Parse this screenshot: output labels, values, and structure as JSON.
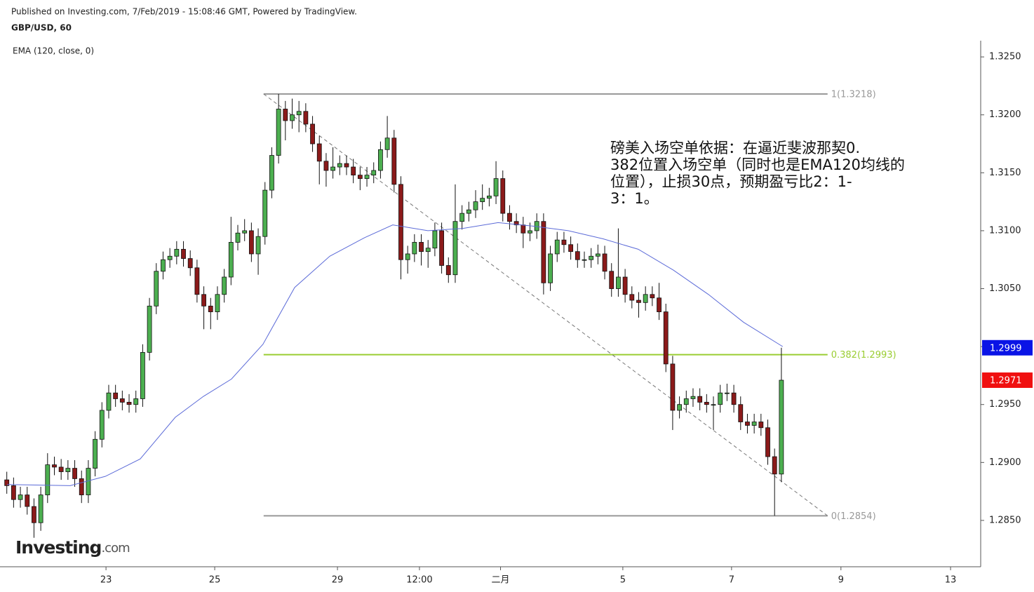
{
  "header": {
    "published": "Published on Investing.com, 7/Feb/2019 - 15:08:46 GMT, Powered by TradingView.",
    "symbol": "GBP/USD, 60"
  },
  "logo": {
    "main": "Investing",
    "suffix": ".com"
  },
  "chart_data": {
    "type": "candlestick",
    "annotation": [
      "磅美入场空单依据：在逼近斐波那契0.",
      "382位置入场空单（同时也是EMA120均线的",
      "位置），止损30点，预期盈亏比2：1-",
      "3：1。"
    ],
    "up_color": "#4caf50",
    "down_color": "#8b1a1a",
    "x": [
      3,
      6,
      9,
      12,
      15,
      18,
      21,
      24,
      27,
      30,
      33,
      36,
      39,
      42,
      45,
      48,
      51,
      54,
      57,
      60,
      63,
      66,
      69,
      72,
      75,
      78,
      81,
      84,
      87,
      90,
      93,
      96,
      99,
      102,
      105,
      108,
      111,
      114,
      117,
      120,
      123,
      126,
      129,
      132,
      135,
      138,
      141,
      144,
      147,
      150,
      153,
      156,
      159,
      162,
      165,
      168,
      171,
      174,
      177,
      180,
      183,
      186,
      189,
      192,
      195,
      198,
      201,
      204,
      207,
      210,
      213,
      216,
      219,
      222,
      225,
      228,
      231,
      234,
      237,
      240,
      243,
      246,
      249,
      252,
      255,
      258,
      261,
      264,
      267,
      270,
      273,
      276,
      279,
      282,
      285,
      288,
      291,
      294,
      297,
      300,
      303,
      306,
      309,
      312,
      315,
      318,
      321,
      324,
      327,
      330,
      333,
      336,
      339,
      342,
      345
    ],
    "open": [
      1.2885,
      1.288,
      1.2868,
      1.2872,
      1.2862,
      1.2848,
      1.2872,
      1.2898,
      1.2896,
      1.2892,
      1.2895,
      1.2886,
      1.2872,
      1.2895,
      1.292,
      1.2945,
      1.296,
      1.2955,
      1.2952,
      1.295,
      1.2955,
      1.2995,
      1.3035,
      1.3065,
      1.3075,
      1.3078,
      1.3084,
      1.3076,
      1.3068,
      1.3045,
      1.3035,
      1.303,
      1.3045,
      1.306,
      1.309,
      1.3098,
      1.31,
      1.308,
      1.3095,
      1.3135,
      1.3165,
      1.3205,
      1.3195,
      1.32,
      1.3203,
      1.3192,
      1.3175,
      1.316,
      1.3152,
      1.3155,
      1.3158,
      1.3155,
      1.3148,
      1.3145,
      1.3148,
      1.3152,
      1.317,
      1.318,
      1.314,
      1.3075,
      1.308,
      1.309,
      1.3082,
      1.3085,
      1.31,
      1.307,
      1.3062,
      1.3108,
      1.3115,
      1.3118,
      1.3125,
      1.3128,
      1.313,
      1.3145,
      1.3115,
      1.3108,
      1.3105,
      1.3098,
      1.31,
      1.3108,
      1.3055,
      1.308,
      1.3092,
      1.3088,
      1.3082,
      1.3075,
      1.3075,
      1.3078,
      1.308,
      1.3065,
      1.305,
      1.306,
      1.3045,
      1.304,
      1.3038,
      1.3045,
      1.3042,
      1.303,
      1.2985,
      1.2945,
      1.295,
      1.2955,
      1.2957,
      1.2952,
      1.295,
      1.295,
      1.296,
      1.296,
      1.295,
      1.2935,
      1.2932,
      1.2935,
      1.293,
      1.2905,
      1.289
    ],
    "high": [
      1.2892,
      1.2887,
      1.2879,
      1.2879,
      1.2869,
      1.2879,
      1.2908,
      1.2905,
      1.2903,
      1.2902,
      1.2902,
      1.2893,
      1.2902,
      1.2927,
      1.2952,
      1.2967,
      1.2967,
      1.2962,
      1.2959,
      1.2962,
      1.3002,
      1.3042,
      1.3072,
      1.3082,
      1.3085,
      1.3091,
      1.3091,
      1.3083,
      1.3075,
      1.3052,
      1.3042,
      1.3052,
      1.3067,
      1.3112,
      1.3105,
      1.311,
      1.3107,
      1.3102,
      1.3142,
      1.3172,
      1.3218,
      1.3212,
      1.3214,
      1.3212,
      1.321,
      1.3199,
      1.3182,
      1.3167,
      1.3172,
      1.3165,
      1.3165,
      1.3162,
      1.3155,
      1.3155,
      1.3159,
      1.3177,
      1.3199,
      1.3187,
      1.3147,
      1.3087,
      1.3097,
      1.3097,
      1.3092,
      1.3107,
      1.3107,
      1.3077,
      1.314,
      1.3122,
      1.3125,
      1.3135,
      1.314,
      1.3137,
      1.316,
      1.3152,
      1.3122,
      1.3115,
      1.3112,
      1.3107,
      1.3115,
      1.3115,
      1.3087,
      1.3099,
      1.3099,
      1.3095,
      1.3089,
      1.3082,
      1.3085,
      1.3088,
      1.3087,
      1.3072,
      1.3102,
      1.3067,
      1.3052,
      1.3047,
      1.3052,
      1.3052,
      1.3055,
      1.3037,
      1.2992,
      1.2957,
      1.2962,
      1.2964,
      1.2964,
      1.2959,
      1.2957,
      1.2967,
      1.2968,
      1.2967,
      1.2957,
      1.2942,
      1.2942,
      1.2942,
      1.2937,
      1.2912,
      1.2999
    ],
    "low": [
      1.2873,
      1.2861,
      1.2861,
      1.2855,
      1.2835,
      1.2841,
      1.2865,
      1.2889,
      1.2885,
      1.2885,
      1.2879,
      1.2865,
      1.2865,
      1.2888,
      1.2913,
      1.2938,
      1.2948,
      1.2945,
      1.2943,
      1.2943,
      1.2948,
      1.2988,
      1.3028,
      1.3058,
      1.3068,
      1.3071,
      1.3069,
      1.3061,
      1.3038,
      1.3015,
      1.3015,
      1.3023,
      1.3038,
      1.3053,
      1.3083,
      1.3091,
      1.3073,
      1.3062,
      1.3088,
      1.3128,
      1.3158,
      1.3178,
      1.3188,
      1.3185,
      1.3185,
      1.3168,
      1.314,
      1.3138,
      1.3145,
      1.3148,
      1.3148,
      1.3141,
      1.3135,
      1.3138,
      1.3141,
      1.3145,
      1.3163,
      1.3133,
      1.3058,
      1.3063,
      1.3073,
      1.307,
      1.3068,
      1.3078,
      1.3063,
      1.3055,
      1.3055,
      1.3101,
      1.3108,
      1.3111,
      1.3118,
      1.3121,
      1.3123,
      1.3108,
      1.3101,
      1.3098,
      1.3085,
      1.3091,
      1.3093,
      1.3045,
      1.3048,
      1.3073,
      1.3081,
      1.3075,
      1.3068,
      1.3068,
      1.3068,
      1.3071,
      1.3058,
      1.3043,
      1.3043,
      1.3038,
      1.3033,
      1.3025,
      1.3031,
      1.3035,
      1.3023,
      1.2978,
      1.2928,
      1.2938,
      1.2943,
      1.2948,
      1.2945,
      1.2943,
      1.2928,
      1.2943,
      1.2953,
      1.2943,
      1.2928,
      1.2925,
      1.2925,
      1.2923,
      1.2898,
      1.2854,
      1.2883
    ],
    "close": [
      1.288,
      1.2868,
      1.2872,
      1.2862,
      1.2848,
      1.2872,
      1.2898,
      1.2896,
      1.2892,
      1.2895,
      1.2886,
      1.2872,
      1.2895,
      1.292,
      1.2945,
      1.296,
      1.2955,
      1.2952,
      1.295,
      1.2955,
      1.2995,
      1.3035,
      1.3065,
      1.3075,
      1.3078,
      1.3084,
      1.3076,
      1.3068,
      1.3045,
      1.3035,
      1.303,
      1.3045,
      1.306,
      1.309,
      1.3098,
      1.31,
      1.308,
      1.3095,
      1.3135,
      1.3165,
      1.3205,
      1.3195,
      1.32,
      1.3203,
      1.3192,
      1.3175,
      1.316,
      1.3152,
      1.3155,
      1.3158,
      1.3155,
      1.3148,
      1.3145,
      1.3148,
      1.3152,
      1.317,
      1.318,
      1.314,
      1.3075,
      1.308,
      1.309,
      1.3082,
      1.3085,
      1.31,
      1.307,
      1.3062,
      1.3108,
      1.3115,
      1.3118,
      1.3125,
      1.3128,
      1.313,
      1.3145,
      1.3115,
      1.3108,
      1.3105,
      1.3098,
      1.31,
      1.3108,
      1.3055,
      1.308,
      1.3092,
      1.3088,
      1.3082,
      1.3075,
      1.3075,
      1.3078,
      1.308,
      1.3065,
      1.305,
      1.306,
      1.3045,
      1.304,
      1.3038,
      1.3045,
      1.3042,
      1.303,
      1.2985,
      1.2945,
      1.295,
      1.2955,
      1.2957,
      1.2952,
      1.295,
      1.295,
      1.296,
      1.296,
      1.295,
      1.2935,
      1.2932,
      1.2935,
      1.293,
      1.2905,
      1.289,
      1.2971
    ],
    "series": [
      {
        "name": "EMA (120, close, 0)",
        "color": "#5c6bd8",
        "x": [
          3.1,
          31,
          46.5,
          61.9,
          77.4,
          89.8,
          102.2,
          116.1,
          130.1,
          145.6,
          161,
          173.4,
          188.9,
          204.4,
          219.9,
          235.4,
          250.9,
          266.3,
          281.8,
          297.3,
          312.8,
          328.3,
          345.6
        ],
        "values": [
          1.2881,
          1.288,
          1.2888,
          1.2903,
          1.2939,
          1.2957,
          1.2972,
          1.3002,
          1.3051,
          1.3078,
          1.3094,
          1.3105,
          1.31,
          1.3102,
          1.3107,
          1.3104,
          1.31,
          1.3093,
          1.3084,
          1.3066,
          1.3045,
          1.3021,
          1.3
        ]
      }
    ],
    "fib_x": [
      116.4,
      365.4
    ],
    "fib_levels": [
      {
        "value": 1.3218,
        "label": "1(1.3218)",
        "color": "#999999"
      },
      {
        "value": 1.2993,
        "label": "0.382(1.2993)",
        "color": "#9acd32"
      },
      {
        "value": 1.2854,
        "label": "0(1.2854)",
        "color": "#999999"
      }
    ],
    "trendline": {
      "x": [
        116.4,
        365.4
      ],
      "values": [
        1.3218,
        1.2854
      ]
    },
    "price_tags": [
      {
        "value": 1.2999,
        "color": "#0a14e6"
      },
      {
        "value": 1.2971,
        "color": "#f01010"
      }
    ],
    "xlim": [
      0,
      433
    ],
    "ylim": [
      1.281,
      1.3264
    ],
    "xticks": [
      {
        "value": 46.8,
        "label": "23"
      },
      {
        "value": 94.8,
        "label": "25"
      },
      {
        "value": 149,
        "label": "29"
      },
      {
        "value": 185.2,
        "label": "12:00"
      },
      {
        "value": 221,
        "label": "二月"
      },
      {
        "value": 275,
        "label": "5"
      },
      {
        "value": 323,
        "label": "7"
      },
      {
        "value": 371.3,
        "label": "9"
      },
      {
        "value": 419.7,
        "label": "13"
      }
    ],
    "yticks": [
      {
        "value": 1.285,
        "label": "1.2850"
      },
      {
        "value": 1.29,
        "label": "1.2900"
      },
      {
        "value": 1.295,
        "label": "1.2950"
      },
      {
        "value": 1.3,
        "label": "1.3000"
      },
      {
        "value": 1.305,
        "label": "1.3050"
      },
      {
        "value": 1.31,
        "label": "1.3100"
      },
      {
        "value": 1.315,
        "label": "1.3150"
      },
      {
        "value": 1.32,
        "label": "1.3200"
      },
      {
        "value": 1.325,
        "label": "1.3250"
      }
    ]
  }
}
